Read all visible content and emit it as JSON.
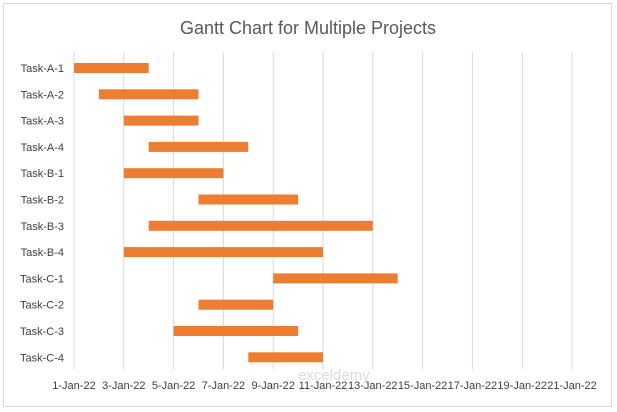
{
  "chart_data": {
    "type": "bar",
    "orientation": "horizontal-gantt",
    "title": "Gantt Chart for Multiple Projects",
    "tasks": [
      {
        "name": "Task-A-1",
        "start": "2022-01-01",
        "end": "2022-01-04"
      },
      {
        "name": "Task-A-2",
        "start": "2022-01-02",
        "end": "2022-01-06"
      },
      {
        "name": "Task-A-3",
        "start": "2022-01-03",
        "end": "2022-01-06"
      },
      {
        "name": "Task-A-4",
        "start": "2022-01-04",
        "end": "2022-01-08"
      },
      {
        "name": "Task-B-1",
        "start": "2022-01-03",
        "end": "2022-01-07"
      },
      {
        "name": "Task-B-2",
        "start": "2022-01-06",
        "end": "2022-01-10"
      },
      {
        "name": "Task-B-3",
        "start": "2022-01-04",
        "end": "2022-01-13"
      },
      {
        "name": "Task-B-4",
        "start": "2022-01-03",
        "end": "2022-01-11"
      },
      {
        "name": "Task-C-1",
        "start": "2022-01-09",
        "end": "2022-01-14"
      },
      {
        "name": "Task-C-2",
        "start": "2022-01-06",
        "end": "2022-01-09"
      },
      {
        "name": "Task-C-3",
        "start": "2022-01-05",
        "end": "2022-01-10"
      },
      {
        "name": "Task-C-4",
        "start": "2022-01-08",
        "end": "2022-01-11"
      }
    ],
    "x_ticks": [
      "1-Jan-22",
      "3-Jan-22",
      "5-Jan-22",
      "7-Jan-22",
      "9-Jan-22",
      "11-Jan-22",
      "13-Jan-22",
      "15-Jan-22",
      "17-Jan-22",
      "19-Jan-22",
      "21-Jan-22"
    ],
    "xlim": [
      "2022-01-01",
      "2022-01-21"
    ],
    "grid": true,
    "legend": "none",
    "bar_color": "#ed7d31"
  },
  "watermark": {
    "text": "exceldemy",
    "subtext": "EXCEL · DATA · BI"
  }
}
